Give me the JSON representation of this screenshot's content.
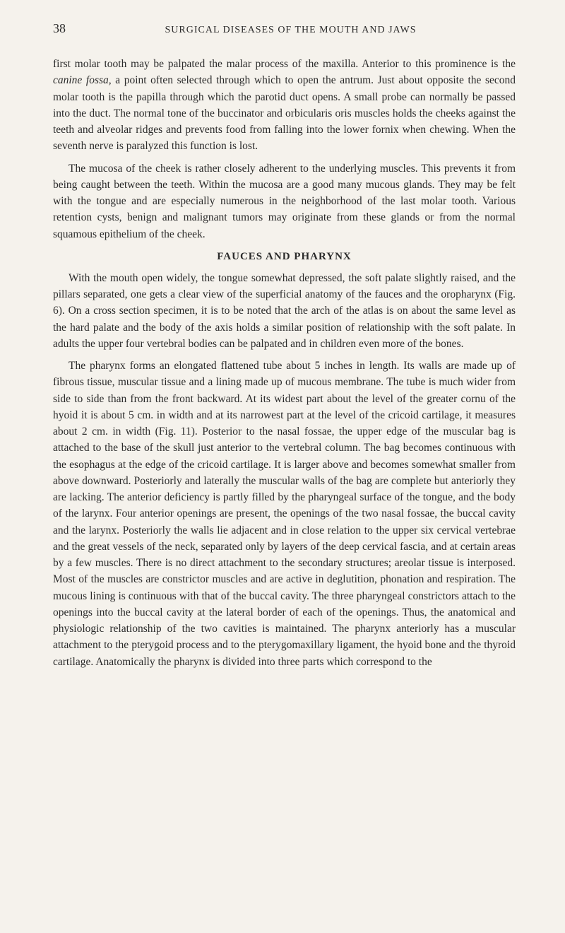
{
  "page_number": "38",
  "header_title": "SURGICAL DISEASES OF THE MOUTH AND JAWS",
  "paragraphs": {
    "p1_pre": "first molar tooth may be palpated the malar process of the maxilla. Anterior to this prominence is the ",
    "p1_italic": "canine fossa,",
    "p1_post": " a point often selected through which to open the antrum. Just about opposite the second molar tooth is the papilla through which the parotid duct opens. A small probe can normally be passed into the duct. The normal tone of the buccinator and orbicularis oris muscles holds the cheeks against the teeth and alveolar ridges and prevents food from falling into the lower fornix when chewing. When the seventh nerve is paralyzed this function is lost.",
    "p2": "The mucosa of the cheek is rather closely adherent to the underlying muscles. This prevents it from being caught between the teeth. Within the mucosa are a good many mucous glands. They may be felt with the tongue and are especially numerous in the neighborhood of the last molar tooth. Various retention cysts, benign and malignant tumors may originate from these glands or from the normal squamous epithelium of the cheek.",
    "p3": "With the mouth open widely, the tongue somewhat depressed, the soft palate slightly raised, and the pillars separated, one gets a clear view of the superficial anatomy of the fauces and the oropharynx (Fig. 6). On a cross section specimen, it is to be noted that the arch of the atlas is on about the same level as the hard palate and the body of the axis holds a similar position of relationship with the soft palate. In adults the upper four vertebral bodies can be palpated and in children even more of the bones.",
    "p4": "The pharynx forms an elongated flattened tube about 5 inches in length. Its walls are made up of fibrous tissue, muscular tissue and a lining made up of mucous membrane. The tube is much wider from side to side than from the front backward. At its widest part about the level of the greater cornu of the hyoid it is about 5 cm. in width and at its narrowest part at the level of the cricoid cartilage, it measures about 2 cm. in width (Fig. 11). Posterior to the nasal fossae, the upper edge of the muscular bag is attached to the base of the skull just anterior to the vertebral column. The bag becomes continuous with the esophagus at the edge of the cricoid cartilage. It is larger above and becomes somewhat smaller from above downward. Posteriorly and laterally the muscular walls of the bag are complete but anteriorly they are lacking. The anterior deficiency is partly filled by the pharyngeal surface of the tongue, and the body of the larynx. Four anterior openings are present, the openings of the two nasal fossae, the buccal cavity and the larynx. Posteriorly the walls lie adjacent and in close relation to the upper six cervical vertebrae and the great vessels of the neck, separated only by layers of the deep cervical fascia, and at certain areas by a few muscles. There is no direct attachment to the secondary structures; areolar tissue is interposed. Most of the muscles are constrictor muscles and are active in deglutition, phonation and respiration. The mucous lining is continuous with that of the buccal cavity. The three pharyngeal constrictors attach to the openings into the buccal cavity at the lateral border of each of the openings. Thus, the anatomical and physiologic relationship of the two cavities is maintained. The pharynx anteriorly has a muscular attachment to the pterygoid process and to the pterygomaxillary ligament, the hyoid bone and the thyroid cartilage. Anatomically the pharynx is divided into three parts which correspond to the"
  },
  "section_heading": "FAUCES AND PHARYNX",
  "colors": {
    "background": "#f5f2ec",
    "text": "#2a2a2a"
  },
  "typography": {
    "body_fontsize": 15.5,
    "heading_fontsize": 15,
    "header_fontsize": 14,
    "page_num_fontsize": 18,
    "line_height": 1.5
  }
}
